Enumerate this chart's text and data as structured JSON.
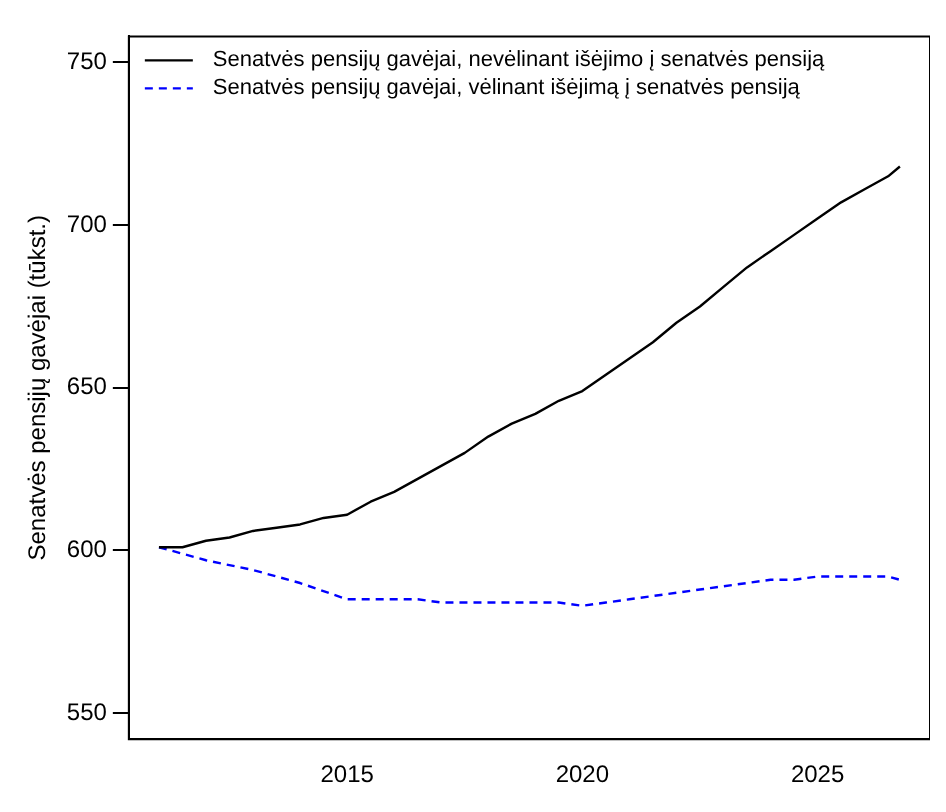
{
  "chart_data": {
    "type": "line",
    "ylabel": "Senatvės pensijų gavėjai (tūkst.)",
    "xlim": [
      2010.36,
      2027.39
    ],
    "ylim": [
      542,
      758
    ],
    "xticks": [
      2015,
      2020,
      2025
    ],
    "yticks": [
      550,
      600,
      650,
      700,
      750
    ],
    "grid": false,
    "legend": "top left",
    "marker": "none",
    "series": [
      {
        "name": "Senatvės pensijų gavėjai, nevėlinant išėjimo į senatvės pensiją",
        "color": "#000000",
        "line_style": "solid",
        "x": [
          2011,
          2011.5,
          2012,
          2012.5,
          2013,
          2013.5,
          2014,
          2014.5,
          2015,
          2015.5,
          2016,
          2016.5,
          2017,
          2017.5,
          2018,
          2018.5,
          2019,
          2019.5,
          2020,
          2020.5,
          2021,
          2021.5,
          2022,
          2022.5,
          2023,
          2023.5,
          2024,
          2024.5,
          2025,
          2025.5,
          2026,
          2026.5,
          2026.75
        ],
        "values": [
          601,
          601,
          603,
          604,
          606,
          607,
          608,
          610,
          611,
          615,
          618,
          622,
          626,
          630,
          635,
          639,
          642,
          646,
          649,
          654,
          659,
          664,
          670,
          675,
          681,
          687,
          692,
          697,
          702,
          707,
          711,
          715,
          718
        ]
      },
      {
        "name": "Senatvės pensijų gavėjai, vėlinant išėjimą į senatvės pensiją",
        "color": "#0000ff",
        "line_style": "dashed",
        "x": [
          2011,
          2012,
          2013,
          2014,
          2015,
          2016,
          2016.5,
          2017,
          2018,
          2019,
          2019.5,
          2020,
          2020.5,
          2021,
          2021.5,
          2022,
          2022.5,
          2023,
          2023.5,
          2024,
          2024.5,
          2025,
          2026,
          2026.5,
          2026.75
        ],
        "values": [
          601,
          597,
          594,
          590,
          585,
          585,
          585,
          584,
          584,
          584,
          584,
          583,
          584,
          585,
          586,
          587,
          588,
          589,
          590,
          591,
          591,
          592,
          592,
          592,
          591
        ]
      }
    ]
  }
}
